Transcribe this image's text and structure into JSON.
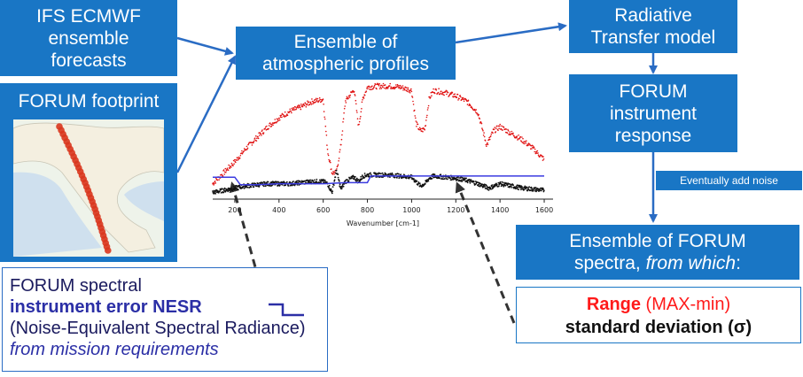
{
  "boxes": {
    "ifs": [
      "IFS ECMWF",
      "ensemble",
      "forecasts"
    ],
    "footprint_title": "FORUM footprint",
    "ensemble_profiles": [
      "Ensemble of",
      "atmospheric profiles"
    ],
    "rtm": [
      "Radiative",
      "Transfer model"
    ],
    "instrument": [
      "FORUM",
      "instrument",
      "response"
    ],
    "noise_label": "Eventually add noise",
    "spectra": [
      "Ensemble of FORUM",
      "spectra,",
      "from which",
      ":"
    ]
  },
  "nesr_box": {
    "line1": "FORUM spectral",
    "line2": "instrument error NESR",
    "line3": "(Noise-Equivalent Spectral Radiance)",
    "line4": "from mission requirements"
  },
  "stats_box": {
    "range_bold": "Range",
    "range_rest": " (MAX-min)",
    "std_bold": "standard deviation",
    "std_open": " (",
    "sigma": "σ",
    "std_close": ")"
  },
  "colors": {
    "box_blue": "#1976c5",
    "arrow_blue": "#2a6cc4",
    "nesr_text": "#2b2fa6",
    "range_red": "#ff1a1a",
    "spectrum_max": "#e01010",
    "spectrum_min": "#111111",
    "nesr_line": "#3b3be0"
  },
  "chart_data": {
    "type": "scatter",
    "xlabel": "Wavenumber [cm-1]",
    "ylabel": "",
    "title": "",
    "xlim": [
      100,
      1640
    ],
    "ylim": [
      0,
      1
    ],
    "xticks": [
      200,
      400,
      600,
      800,
      1000,
      1200,
      1400,
      1600
    ],
    "series": [
      {
        "x": [
          100,
          150,
          200,
          250,
          300,
          350,
          400,
          450,
          500,
          550,
          580,
          600,
          620,
          640,
          660,
          680,
          700,
          740,
          760,
          780,
          800,
          850,
          900,
          950,
          1000,
          1020,
          1040,
          1060,
          1080,
          1100,
          1150,
          1200,
          1250,
          1300,
          1340,
          1370,
          1400,
          1450,
          1500,
          1550,
          1600
        ],
        "y": [
          0.1,
          0.2,
          0.3,
          0.42,
          0.52,
          0.62,
          0.7,
          0.76,
          0.8,
          0.85,
          0.86,
          0.87,
          0.4,
          0.2,
          0.2,
          0.45,
          0.85,
          0.96,
          0.62,
          0.88,
          0.98,
          0.99,
          0.99,
          0.98,
          0.95,
          0.65,
          0.58,
          0.6,
          0.88,
          0.95,
          0.93,
          0.9,
          0.85,
          0.75,
          0.45,
          0.58,
          0.62,
          0.56,
          0.5,
          0.42,
          0.32
        ]
      },
      {
        "x": [
          100,
          150,
          200,
          250,
          300,
          350,
          400,
          450,
          500,
          550,
          600,
          620,
          640,
          660,
          680,
          700,
          740,
          760,
          780,
          800,
          850,
          900,
          950,
          1000,
          1040,
          1060,
          1080,
          1100,
          1150,
          1200,
          1250,
          1300,
          1350,
          1400,
          1450,
          1500,
          1550,
          1600
        ],
        "y": [
          0.02,
          0.04,
          0.06,
          0.08,
          0.09,
          0.1,
          0.1,
          0.1,
          0.11,
          0.12,
          0.12,
          0.1,
          0.02,
          0.22,
          0.05,
          0.12,
          0.16,
          0.12,
          0.17,
          0.18,
          0.18,
          0.18,
          0.17,
          0.16,
          0.08,
          0.1,
          0.15,
          0.17,
          0.16,
          0.15,
          0.13,
          0.1,
          0.06,
          0.1,
          0.08,
          0.06,
          0.05,
          0.04
        ]
      },
      {
        "x": [
          100,
          150,
          200,
          225,
          300,
          400,
          500,
          600,
          700,
          800,
          815,
          900,
          1000,
          1100,
          1200,
          1300,
          1400,
          1500,
          1600
        ],
        "y": [
          0.16,
          0.16,
          0.16,
          0.09,
          0.09,
          0.1,
          0.1,
          0.1,
          0.11,
          0.11,
          0.17,
          0.17,
          0.17,
          0.17,
          0.17,
          0.17,
          0.17,
          0.17,
          0.17
        ]
      }
    ]
  }
}
